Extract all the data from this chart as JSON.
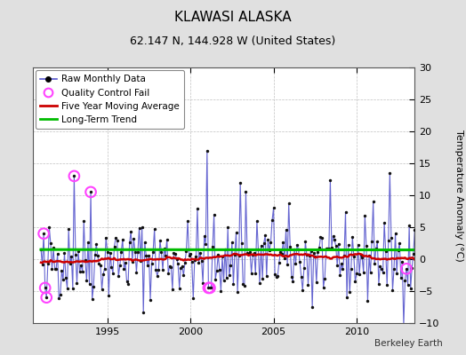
{
  "title": "KLAWASI ALASKA",
  "subtitle": "62.147 N, 144.928 W (United States)",
  "ylabel": "Temperature Anomaly (°C)",
  "credit": "Berkeley Earth",
  "ylim": [
    -10,
    30
  ],
  "yticks": [
    -10,
    -5,
    0,
    5,
    10,
    15,
    20,
    25,
    30
  ],
  "xlim_start": 1990.5,
  "xlim_end": 2013.5,
  "xticks": [
    1995,
    2000,
    2005,
    2010
  ],
  "bg_color": "#e0e0e0",
  "plot_bg_color": "#ffffff",
  "raw_line_color": "#5555cc",
  "raw_dot_color": "#111111",
  "ma_color": "#cc0000",
  "trend_color": "#00bb00",
  "qc_color": "#ff44ff",
  "seed": 42,
  "n_months": 276,
  "start_year": 1991,
  "start_month": 1,
  "trend_intercept": 1.5,
  "trend_slope": -0.0002,
  "legend_raw": "Raw Monthly Data",
  "legend_qc": "Quality Control Fail",
  "legend_ma": "Five Year Moving Average",
  "legend_trend": "Long-Term Trend",
  "title_fontsize": 11,
  "subtitle_fontsize": 9,
  "ylabel_fontsize": 8,
  "tick_fontsize": 8,
  "legend_fontsize": 7.5,
  "credit_fontsize": 7.5
}
